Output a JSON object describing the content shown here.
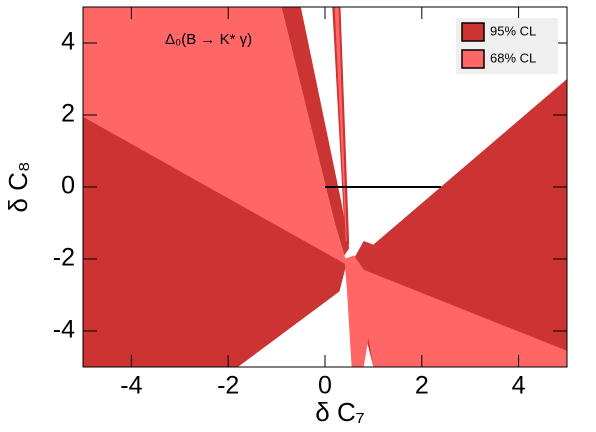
{
  "chart_data": {
    "type": "contour",
    "annotation": "Δ₀(B → K* γ)",
    "x_label": "δ C₇",
    "y_label": "δ C₈",
    "xlim": [
      -5,
      5
    ],
    "ylim": [
      -5,
      5
    ],
    "xticks": [
      -4,
      -2,
      0,
      2,
      4
    ],
    "yticks": [
      -4,
      -2,
      0,
      2,
      4
    ],
    "legend": "top-right",
    "series": [
      {
        "name": "95% CL",
        "color": "#cc3333",
        "regions": [
          {
            "x": [
              -5,
              0.45,
              0.3,
              -1.8,
              -5
            ],
            "y": [
              2,
              -2.1,
              -2.9,
              -5,
              -5
            ]
          },
          {
            "x": [
              0.55,
              0.8,
              1.0,
              5,
              5,
              1.0,
              0.85,
              0.6
            ],
            "y": [
              -2.1,
              -1.5,
              -1.6,
              3,
              -5,
              -5,
              -4.2,
              -2.9
            ]
          },
          {
            "x": [
              -0.9,
              -0.5,
              0.35,
              0.5,
              0.4,
              0.2
            ],
            "y": [
              5,
              5,
              -0.5,
              -1.7,
              -1.9,
              -1.0
            ]
          },
          {
            "x": [
              0.15,
              0.32,
              0.5,
              0.42
            ],
            "y": [
              5,
              5,
              -1.6,
              -1.6
            ]
          }
        ]
      },
      {
        "name": "68% CL",
        "color": "#ff6666",
        "regions": [
          {
            "x": [
              -5,
              -0.9,
              0.2,
              0.4,
              0.5,
              -5
            ],
            "y": [
              5,
              5,
              -1.0,
              -1.9,
              -2.2,
              1.95
            ]
          },
          {
            "x": [
              0.2,
              0.28,
              0.45,
              0.43
            ],
            "y": [
              5,
              5,
              -1.5,
              -1.5
            ]
          },
          {
            "x": [
              0.4,
              0.6,
              0.8,
              5,
              5,
              1.0,
              0.9,
              0.8,
              0.55,
              0.45
            ],
            "y": [
              -2.0,
              -1.9,
              -2.3,
              -4.55,
              -5,
              -5,
              -4.2,
              -5,
              -5,
              -2.8
            ]
          }
        ]
      }
    ],
    "reference_line": {
      "color": "#000000",
      "x": [
        0,
        2.4
      ],
      "y": [
        0,
        0
      ]
    }
  }
}
